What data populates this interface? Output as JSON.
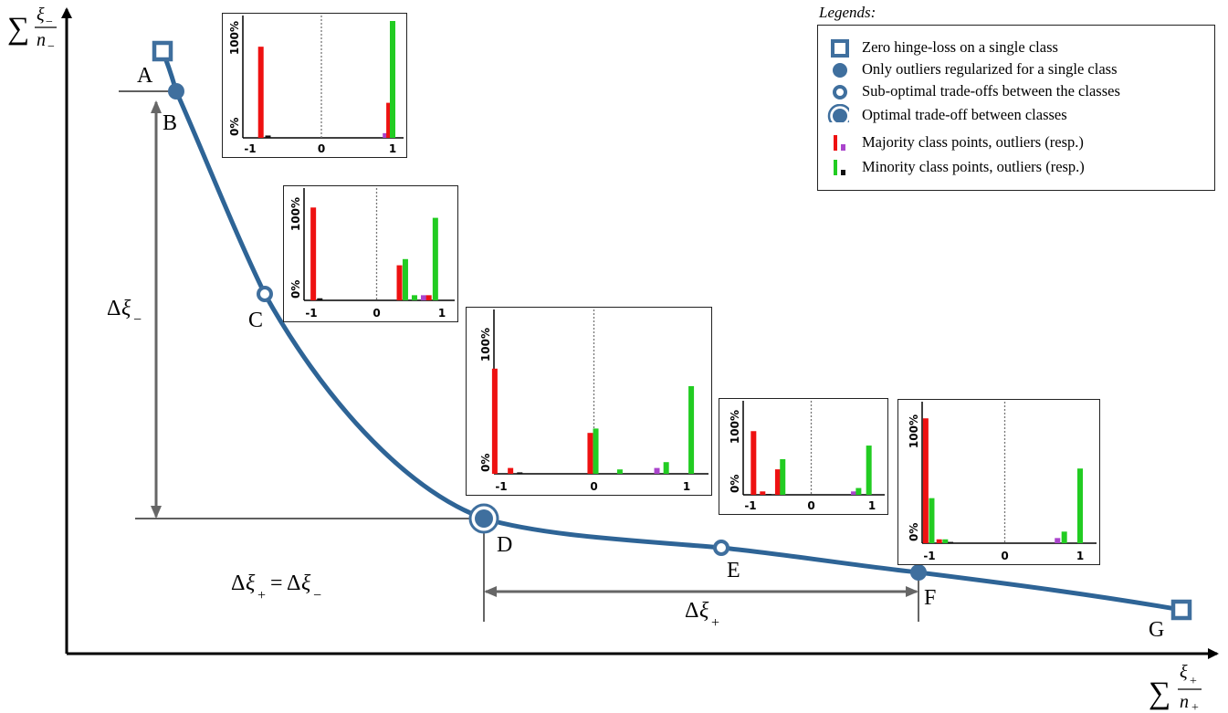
{
  "axes": {
    "y_label": {
      "sum": "∑",
      "num": "ξ",
      "num_sub": "−",
      "den": "n",
      "den_sub": "−"
    },
    "x_label": {
      "sum": "∑",
      "num": "ξ",
      "num_sub": "+",
      "den": "n",
      "den_sub": "+"
    }
  },
  "points": [
    {
      "label": "A",
      "marker": "square"
    },
    {
      "label": "B",
      "marker": "dot"
    },
    {
      "label": "C",
      "marker": "ring"
    },
    {
      "label": "D",
      "marker": "optimal"
    },
    {
      "label": "E",
      "marker": "ring"
    },
    {
      "label": "F",
      "marker": "dot"
    },
    {
      "label": "G",
      "marker": "square"
    }
  ],
  "annotations": {
    "delta_minus": {
      "delta": "Δ",
      "xi": "ξ",
      "sub": "−"
    },
    "delta_plus": {
      "delta": "Δ",
      "xi": "ξ",
      "sub": "+"
    },
    "equality": {
      "lhs_delta": "Δ",
      "lhs_xi": "ξ",
      "lhs_sub": "+",
      "eq": "=",
      "rhs_delta": "Δ",
      "rhs_xi": "ξ",
      "rhs_sub": "−"
    }
  },
  "legend": {
    "title": "Legends:",
    "items": [
      {
        "marker": "square",
        "text": "Zero hinge-loss on a single class"
      },
      {
        "marker": "dot",
        "text": "Only outliers regularized for a single class"
      },
      {
        "marker": "ring",
        "text": "Sub-optimal trade-offs between the classes"
      },
      {
        "marker": "optimal",
        "text": "Optimal trade-off between classes"
      },
      {
        "marker": "majority",
        "text": "Majority class points, outliers (resp.)"
      },
      {
        "marker": "minority",
        "text": "Minority class points, outliers (resp.)"
      }
    ]
  },
  "colors": {
    "curve": "#2e6496",
    "marker": "#3f6f9e",
    "majority": "#ee1111",
    "majority_outlier": "#aa44cc",
    "minority": "#22cc22",
    "minority_outlier": "#111111",
    "axis": "#000000",
    "guide": "#666666"
  },
  "insets": {
    "x_ticks": [
      "-1",
      "0",
      "1"
    ],
    "y_ticks": [
      "0%",
      "100%"
    ],
    "panels": [
      {
        "point": "A",
        "bars": [
          {
            "x": -0.85,
            "value": 78,
            "kind": "majority"
          },
          {
            "x": -0.75,
            "value": 2,
            "kind": "minority_outlier"
          },
          {
            "x": 0.9,
            "value": 4,
            "kind": "majority_outlier"
          },
          {
            "x": 0.95,
            "value": 30,
            "kind": "majority"
          },
          {
            "x": 1.0,
            "value": 100,
            "kind": "minority"
          }
        ]
      },
      {
        "point": "C",
        "bars": [
          {
            "x": -0.97,
            "value": 90,
            "kind": "majority"
          },
          {
            "x": -0.87,
            "value": 2,
            "kind": "minority_outlier"
          },
          {
            "x": 0.35,
            "value": 34,
            "kind": "majority"
          },
          {
            "x": 0.44,
            "value": 40,
            "kind": "minority"
          },
          {
            "x": 0.58,
            "value": 5,
            "kind": "minority"
          },
          {
            "x": 0.72,
            "value": 5,
            "kind": "majority_outlier"
          },
          {
            "x": 0.8,
            "value": 5,
            "kind": "majority"
          },
          {
            "x": 0.9,
            "value": 80,
            "kind": "minority"
          }
        ]
      },
      {
        "point": "D",
        "bars": [
          {
            "x": -1.07,
            "value": 72,
            "kind": "majority"
          },
          {
            "x": -0.9,
            "value": 4,
            "kind": "majority"
          },
          {
            "x": -0.8,
            "value": 1,
            "kind": "minority_outlier"
          },
          {
            "x": -0.04,
            "value": 28,
            "kind": "majority"
          },
          {
            "x": 0.02,
            "value": 31,
            "kind": "minority"
          },
          {
            "x": 0.28,
            "value": 3,
            "kind": "minority"
          },
          {
            "x": 0.68,
            "value": 4,
            "kind": "majority_outlier"
          },
          {
            "x": 0.78,
            "value": 8,
            "kind": "minority"
          },
          {
            "x": 1.05,
            "value": 60,
            "kind": "minority"
          }
        ]
      },
      {
        "point": "E",
        "bars": [
          {
            "x": -0.95,
            "value": 75,
            "kind": "majority"
          },
          {
            "x": -0.8,
            "value": 4,
            "kind": "majority"
          },
          {
            "x": -0.7,
            "value": 1,
            "kind": "minority_outlier"
          },
          {
            "x": -0.55,
            "value": 30,
            "kind": "majority"
          },
          {
            "x": -0.47,
            "value": 42,
            "kind": "minority"
          },
          {
            "x": 0.7,
            "value": 4,
            "kind": "majority_outlier"
          },
          {
            "x": 0.78,
            "value": 8,
            "kind": "minority"
          },
          {
            "x": 0.95,
            "value": 58,
            "kind": "minority"
          }
        ]
      },
      {
        "point": "F",
        "bars": [
          {
            "x": -1.05,
            "value": 97,
            "kind": "majority"
          },
          {
            "x": -0.97,
            "value": 35,
            "kind": "minority"
          },
          {
            "x": -0.87,
            "value": 3,
            "kind": "majority"
          },
          {
            "x": -0.79,
            "value": 3,
            "kind": "minority"
          },
          {
            "x": -0.72,
            "value": 1,
            "kind": "minority_outlier"
          },
          {
            "x": 0.7,
            "value": 4,
            "kind": "majority_outlier"
          },
          {
            "x": 0.79,
            "value": 9,
            "kind": "minority"
          },
          {
            "x": 1.0,
            "value": 58,
            "kind": "minority"
          }
        ]
      }
    ]
  }
}
